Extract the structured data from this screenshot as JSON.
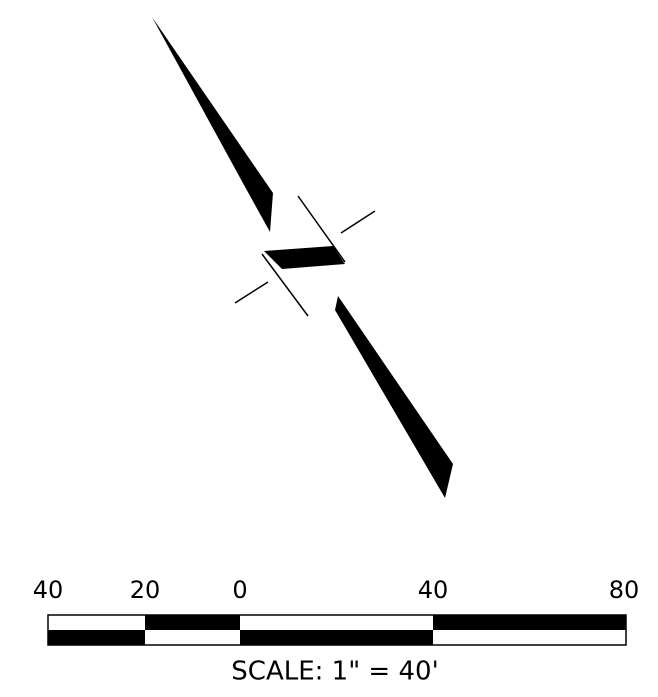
{
  "scale_bar": {
    "labels": [
      "40",
      "20",
      "0",
      "40",
      "80"
    ],
    "caption": "SCALE: 1\" = 40'"
  }
}
